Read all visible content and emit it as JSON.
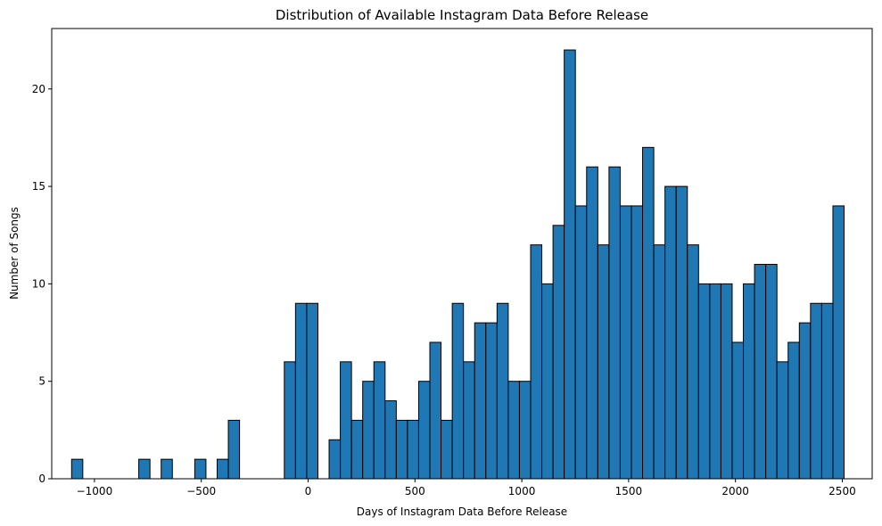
{
  "chart_data": {
    "type": "bar",
    "title": "Distribution of Available Instagram Data Before Release",
    "xlabel": "Days of Instagram Data Before Release",
    "ylabel": "Number of Songs",
    "xlim": [
      -1200,
      2640
    ],
    "ylim": [
      0,
      23.1
    ],
    "xticks": [
      -1000,
      -500,
      0,
      500,
      1000,
      1500,
      2000,
      2500
    ],
    "yticks": [
      0,
      5,
      10,
      15,
      20
    ],
    "bin_start": -1107,
    "bin_width": 52.4,
    "counts": [
      1,
      0,
      0,
      0,
      0,
      0,
      1,
      0,
      1,
      0,
      0,
      1,
      0,
      1,
      3,
      0,
      0,
      0,
      0,
      6,
      9,
      9,
      0,
      2,
      6,
      3,
      5,
      6,
      4,
      3,
      3,
      5,
      7,
      3,
      9,
      6,
      8,
      8,
      9,
      5,
      5,
      12,
      10,
      13,
      22,
      14,
      16,
      12,
      16,
      14,
      14,
      17,
      12,
      15,
      15,
      12,
      10,
      10,
      10,
      7,
      10,
      11,
      11,
      6,
      7,
      8,
      9,
      9,
      14
    ],
    "bar_color": "#1f77b4",
    "edge_color": "#000000",
    "grid": false,
    "legend": "none"
  }
}
